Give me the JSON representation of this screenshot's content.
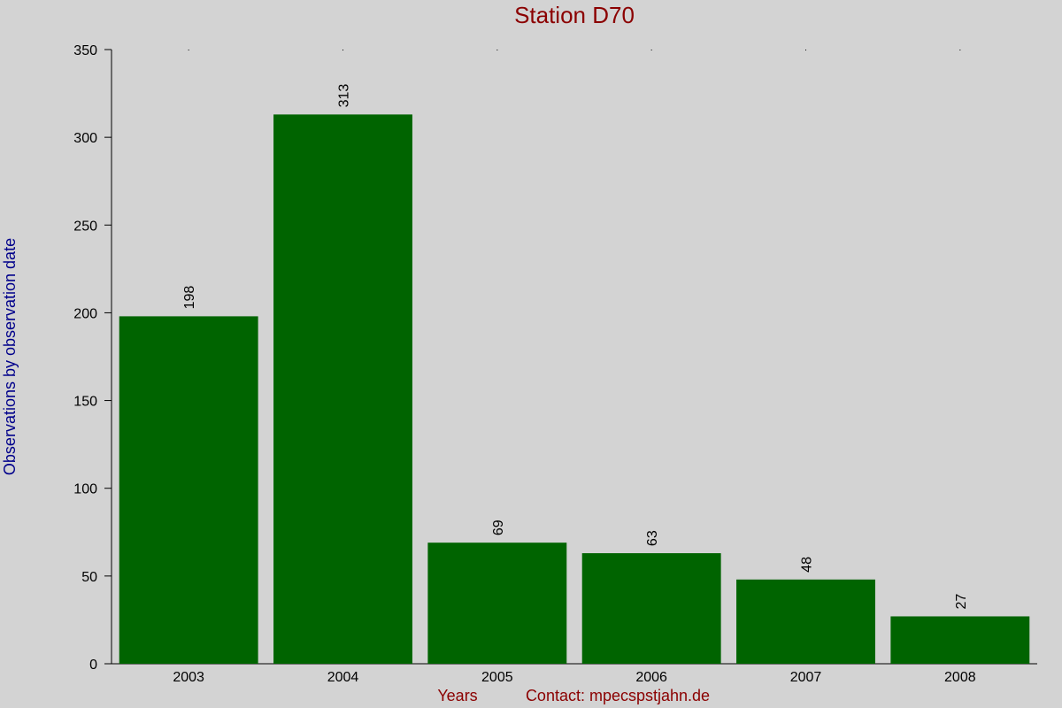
{
  "chart_data": {
    "type": "bar",
    "title": "Station D70",
    "x_label": "Years",
    "y_label": "Observations by observation date",
    "annotation": "Contact: mpecspstjahn.de",
    "categories": [
      "2003",
      "2004",
      "2005",
      "2006",
      "2007",
      "2008"
    ],
    "values": [
      198,
      313,
      69,
      63,
      48,
      27
    ],
    "color": "#006400",
    "ylim": [
      0,
      350
    ],
    "yticks": [
      0,
      50,
      100,
      150,
      200,
      250,
      300,
      350
    ],
    "grid": false
  }
}
